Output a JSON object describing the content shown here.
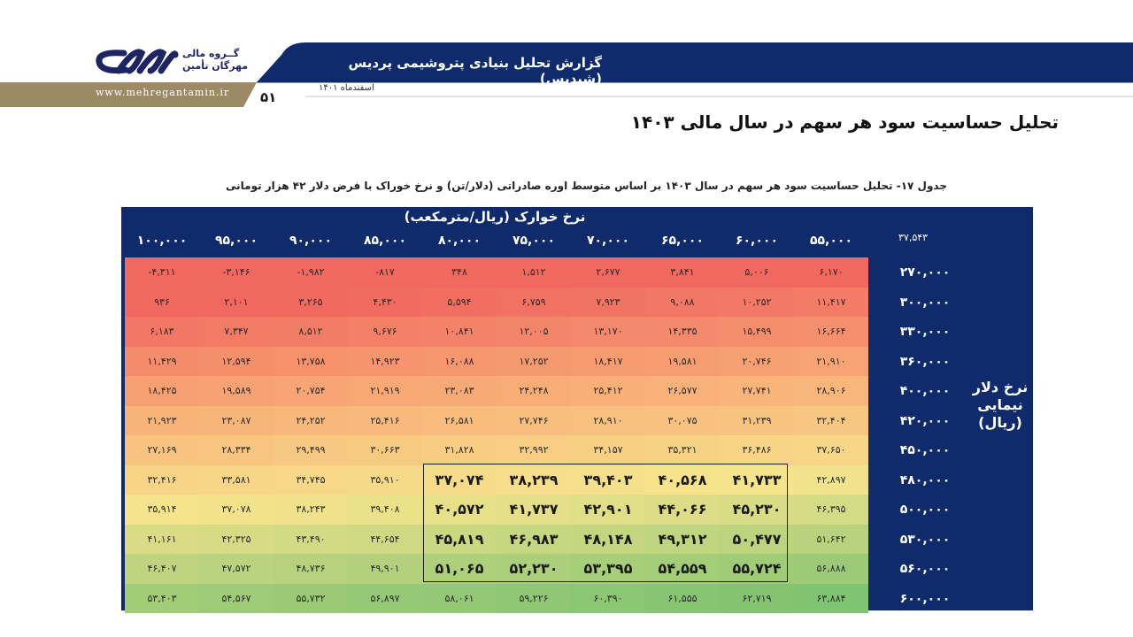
{
  "header": {
    "report_title": "گزارش تحلیل بنیادی پتروشیمی پردیس (شپدیس)",
    "date": "اسفندماه ۱۴۰۱",
    "page_number": "۵۱",
    "website": "www.mehregantamin.ir",
    "brand_line1": "گــروه مالی",
    "brand_line2": "مهرگان تأمین"
  },
  "colors": {
    "navy": "#0f2b6b",
    "gold": "#9b8a63",
    "red": "#f0685f",
    "yellow": "#f5e38a",
    "green": "#80c36f"
  },
  "page_title": "تحلیل حساسیت سود هر سهم در سال مالی ۱۴۰۳",
  "caption": "جدول ۱۷- تحلیل حساسیت سود هر سهم در سال ۱۴۰۳ بر اساس متوسط اوره صادراتی (دلار/تن) و نرخ خوراک با فرض دلار ۴۲ هزار تومانی",
  "table": {
    "col_title": "نرخ خوارک (ریال/مترمکعب)",
    "row_title": "نرخ دلار نیمایی (ریال)",
    "corner_value": "۳۷,۵۴۳",
    "columns": [
      "۵۵,۰۰۰",
      "۶۰,۰۰۰",
      "۶۵,۰۰۰",
      "۷۰,۰۰۰",
      "۷۵,۰۰۰",
      "۸۰,۰۰۰",
      "۸۵,۰۰۰",
      "۹۰,۰۰۰",
      "۹۵,۰۰۰",
      "۱۰۰,۰۰۰"
    ],
    "rows": [
      {
        "label": "۲۷۰,۰۰۰",
        "values": [
          "۶,۱۷۰",
          "۵,۰۰۶",
          "۳,۸۴۱",
          "۲,۶۷۷",
          "۱,۵۱۲",
          "۳۴۸",
          "-۸۱۷",
          "-۱,۹۸۲",
          "-۳,۱۴۶",
          "-۴,۳۱۱"
        ]
      },
      {
        "label": "۳۰۰,۰۰۰",
        "values": [
          "۱۱,۴۱۷",
          "۱۰,۲۵۲",
          "۹,۰۸۸",
          "۷,۹۲۳",
          "۶,۷۵۹",
          "۵,۵۹۴",
          "۴,۴۳۰",
          "۳,۲۶۵",
          "۲,۱۰۱",
          "۹۳۶"
        ]
      },
      {
        "label": "۳۳۰,۰۰۰",
        "values": [
          "۱۶,۶۶۴",
          "۱۵,۴۹۹",
          "۱۴,۳۳۵",
          "۱۳,۱۷۰",
          "۱۲,۰۰۵",
          "۱۰,۸۴۱",
          "۹,۶۷۶",
          "۸,۵۱۲",
          "۷,۳۴۷",
          "۶,۱۸۳"
        ]
      },
      {
        "label": "۳۶۰,۰۰۰",
        "values": [
          "۲۱,۹۱۰",
          "۲۰,۷۴۶",
          "۱۹,۵۸۱",
          "۱۸,۴۱۷",
          "۱۷,۲۵۲",
          "۱۶,۰۸۸",
          "۱۴,۹۲۳",
          "۱۳,۷۵۸",
          "۱۲,۵۹۴",
          "۱۱,۴۲۹"
        ]
      },
      {
        "label": "۴۰۰,۰۰۰",
        "values": [
          "۲۸,۹۰۶",
          "۲۷,۷۴۱",
          "۲۶,۵۷۷",
          "۲۵,۴۱۲",
          "۲۴,۲۴۸",
          "۲۳,۰۸۳",
          "۲۱,۹۱۹",
          "۲۰,۷۵۴",
          "۱۹,۵۸۹",
          "۱۸,۴۲۵"
        ]
      },
      {
        "label": "۴۲۰,۰۰۰",
        "values": [
          "۳۲,۴۰۴",
          "۳۱,۲۳۹",
          "۳۰,۰۷۵",
          "۲۸,۹۱۰",
          "۲۷,۷۴۶",
          "۲۶,۵۸۱",
          "۲۵,۴۱۶",
          "۲۴,۲۵۲",
          "۲۳,۰۸۷",
          "۲۱,۹۲۳"
        ]
      },
      {
        "label": "۴۵۰,۰۰۰",
        "values": [
          "۳۷,۶۵۰",
          "۳۶,۴۸۶",
          "۳۵,۳۲۱",
          "۳۴,۱۵۷",
          "۳۲,۹۹۲",
          "۳۱,۸۲۸",
          "۳۰,۶۶۳",
          "۲۹,۴۹۹",
          "۲۸,۳۳۴",
          "۲۷,۱۶۹"
        ]
      },
      {
        "label": "۴۸۰,۰۰۰",
        "values": [
          "۴۲,۸۹۷",
          "۴۱,۷۳۳",
          "۴۰,۵۶۸",
          "۳۹,۴۰۳",
          "۳۸,۲۳۹",
          "۳۷,۰۷۴",
          "۳۵,۹۱۰",
          "۳۴,۷۴۵",
          "۳۳,۵۸۱",
          "۳۲,۴۱۶"
        ]
      },
      {
        "label": "۵۰۰,۰۰۰",
        "values": [
          "۴۶,۳۹۵",
          "۴۵,۲۳۰",
          "۴۴,۰۶۶",
          "۴۲,۹۰۱",
          "۴۱,۷۳۷",
          "۴۰,۵۷۲",
          "۳۹,۴۰۸",
          "۳۸,۲۴۳",
          "۳۷,۰۷۸",
          "۳۵,۹۱۴"
        ]
      },
      {
        "label": "۵۳۰,۰۰۰",
        "values": [
          "۵۱,۶۴۲",
          "۵۰,۴۷۷",
          "۴۹,۳۱۲",
          "۴۸,۱۴۸",
          "۴۶,۹۸۳",
          "۴۵,۸۱۹",
          "۴۴,۶۵۴",
          "۴۳,۴۹۰",
          "۴۲,۳۲۵",
          "۴۱,۱۶۱"
        ]
      },
      {
        "label": "۵۶۰,۰۰۰",
        "values": [
          "۵۶,۸۸۸",
          "۵۵,۷۲۴",
          "۵۴,۵۵۹",
          "۵۳,۳۹۵",
          "۵۲,۲۳۰",
          "۵۱,۰۶۵",
          "۴۹,۹۰۱",
          "۴۸,۷۳۶",
          "۴۷,۵۷۲",
          "۴۶,۴۰۷"
        ]
      },
      {
        "label": "۶۰۰,۰۰۰",
        "values": [
          "۶۳,۸۸۴",
          "۶۲,۷۱۹",
          "۶۱,۵۵۵",
          "۶۰,۳۹۰",
          "۵۹,۲۲۶",
          "۵۸,۰۶۱",
          "۵۶,۸۹۷",
          "۵۵,۷۳۲",
          "۵۴,۵۶۷",
          "۵۳,۴۰۳"
        ]
      }
    ]
  }
}
